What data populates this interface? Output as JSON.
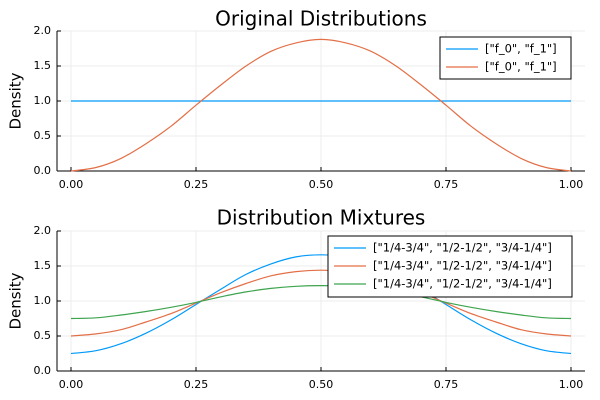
{
  "chart_data": [
    {
      "type": "line",
      "title": "Original Distributions",
      "xlabel": "",
      "ylabel": "Density",
      "xlim": [
        0,
        1
      ],
      "ylim": [
        0,
        2
      ],
      "xticks": [
        "0.00",
        "0.25",
        "0.50",
        "0.75",
        "1.00"
      ],
      "yticks": [
        "0.0",
        "0.5",
        "1.0",
        "1.5",
        "2.0"
      ],
      "grid": true,
      "legend": "top-right",
      "x": [
        0.0,
        0.05,
        0.1,
        0.15,
        0.2,
        0.25,
        0.3,
        0.35,
        0.4,
        0.45,
        0.5,
        0.55,
        0.6,
        0.65,
        0.7,
        0.75,
        0.8,
        0.85,
        0.9,
        0.95,
        1.0
      ],
      "series": [
        {
          "name": "[\"f_0\", \"f_1\"]",
          "color": "#009AFA",
          "values": [
            1.0,
            1.0,
            1.0,
            1.0,
            1.0,
            1.0,
            1.0,
            1.0,
            1.0,
            1.0,
            1.0,
            1.0,
            1.0,
            1.0,
            1.0,
            1.0,
            1.0,
            1.0,
            1.0,
            1.0,
            1.0
          ]
        },
        {
          "name": "[\"f_0\", \"f_1\"]",
          "color": "#E36F47",
          "values": [
            0.0,
            0.05,
            0.18,
            0.39,
            0.64,
            0.94,
            1.23,
            1.5,
            1.71,
            1.83,
            1.88,
            1.83,
            1.71,
            1.5,
            1.23,
            0.94,
            0.64,
            0.39,
            0.18,
            0.05,
            0.0
          ]
        }
      ]
    },
    {
      "type": "line",
      "title": "Distribution Mixtures",
      "xlabel": "",
      "ylabel": "Density",
      "xlim": [
        0,
        1
      ],
      "ylim": [
        0,
        2
      ],
      "xticks": [
        "0.00",
        "0.25",
        "0.50",
        "0.75",
        "1.00"
      ],
      "yticks": [
        "0.0",
        "0.5",
        "1.0",
        "1.5",
        "2.0"
      ],
      "grid": true,
      "legend": "top-right",
      "x": [
        0.0,
        0.05,
        0.1,
        0.15,
        0.2,
        0.25,
        0.3,
        0.35,
        0.4,
        0.45,
        0.5,
        0.55,
        0.6,
        0.65,
        0.7,
        0.75,
        0.8,
        0.85,
        0.9,
        0.95,
        1.0
      ],
      "series": [
        {
          "name": "[\"1/4-3/4\", \"1/2-1/2\", \"3/4-1/4\"]",
          "color": "#009AFA",
          "values": [
            0.25,
            0.29,
            0.39,
            0.54,
            0.73,
            0.95,
            1.17,
            1.38,
            1.53,
            1.63,
            1.66,
            1.63,
            1.53,
            1.38,
            1.17,
            0.95,
            0.73,
            0.54,
            0.39,
            0.29,
            0.25
          ]
        },
        {
          "name": "[\"1/4-3/4\", \"1/2-1/2\", \"3/4-1/4\"]",
          "color": "#E36F47",
          "values": [
            0.5,
            0.53,
            0.59,
            0.7,
            0.82,
            0.97,
            1.12,
            1.25,
            1.36,
            1.42,
            1.44,
            1.42,
            1.36,
            1.25,
            1.12,
            0.97,
            0.82,
            0.7,
            0.59,
            0.53,
            0.5
          ]
        },
        {
          "name": "[\"1/4-3/4\", \"1/2-1/2\", \"3/4-1/4\"]",
          "color": "#3EA44E",
          "values": [
            0.75,
            0.76,
            0.8,
            0.85,
            0.91,
            0.98,
            1.06,
            1.13,
            1.18,
            1.21,
            1.22,
            1.21,
            1.18,
            1.13,
            1.06,
            0.98,
            0.91,
            0.85,
            0.8,
            0.76,
            0.75
          ]
        }
      ]
    }
  ]
}
